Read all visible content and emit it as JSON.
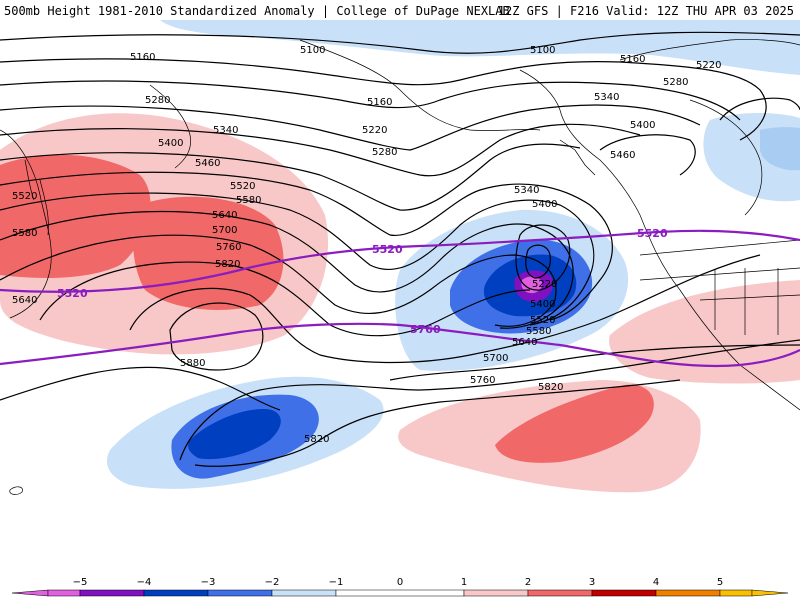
{
  "header": {
    "title_left": "500mb Height 1981-2010 Standardized Anomaly | College of DuPage NEXLAB",
    "title_right": "12Z GFS | F216 Valid: 12Z THU APR 03 2025"
  },
  "contours": {
    "black_labels": [
      "5100",
      "5100",
      "5160",
      "5160",
      "5160",
      "5220",
      "5220",
      "5280",
      "5280",
      "5280",
      "5340",
      "5340",
      "5340",
      "5400",
      "5400",
      "5400",
      "5460",
      "5460",
      "5520",
      "5520",
      "5520",
      "5580",
      "5580",
      "5580",
      "5640",
      "5640",
      "5640",
      "5700",
      "5700",
      "5760",
      "5760",
      "5820",
      "5820",
      "5820",
      "5880",
      "5220",
      "5400"
    ],
    "purple_labels": [
      "5520",
      "5520",
      "5520",
      "5760"
    ]
  },
  "colors": {
    "anom_neg5": "#e060e0",
    "anom_neg4": "#8010c0",
    "anom_neg3": "#0040c0",
    "anom_neg2": "#4070e8",
    "anom_neg1": "#c8e0f8",
    "anom_pos1": "#f8c8c8",
    "anom_pos2": "#f06868",
    "anom_pos3": "#c00000",
    "anom_pos4": "#f08000",
    "anom_pos5": "#f8c000",
    "purple_contour": "#8a1cc0"
  },
  "colorbar": {
    "ticks": [
      "−5",
      "−4",
      "−3",
      "−2",
      "−1",
      "0",
      "1",
      "2",
      "3",
      "4",
      "5"
    ]
  }
}
